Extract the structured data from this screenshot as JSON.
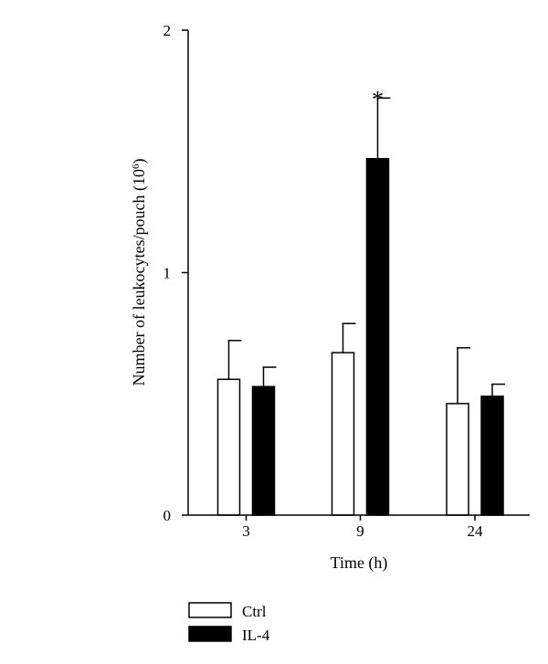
{
  "chart_data": {
    "type": "bar",
    "categories": [
      "3",
      "9",
      "24"
    ],
    "series": [
      {
        "name": "Ctrl",
        "color": "#ffffff",
        "values": [
          0.56,
          0.67,
          0.46
        ],
        "errors": [
          0.16,
          0.12,
          0.23
        ]
      },
      {
        "name": "IL-4",
        "color": "#000000",
        "values": [
          0.53,
          1.47,
          0.49
        ],
        "errors": [
          0.08,
          0.25,
          0.05
        ]
      }
    ],
    "xlabel": "Time (h)",
    "ylabel_main": "Number of leukocytes/pouch (10",
    "ylabel_sup": "6",
    "ylabel_tail": ")",
    "ylim": [
      0,
      2
    ],
    "yticks": [
      "0",
      "1",
      "2"
    ],
    "annotations": [
      {
        "category": "9",
        "series": "IL-4",
        "text": "*"
      }
    ],
    "grid": false,
    "legend_position": "bottom-left"
  }
}
